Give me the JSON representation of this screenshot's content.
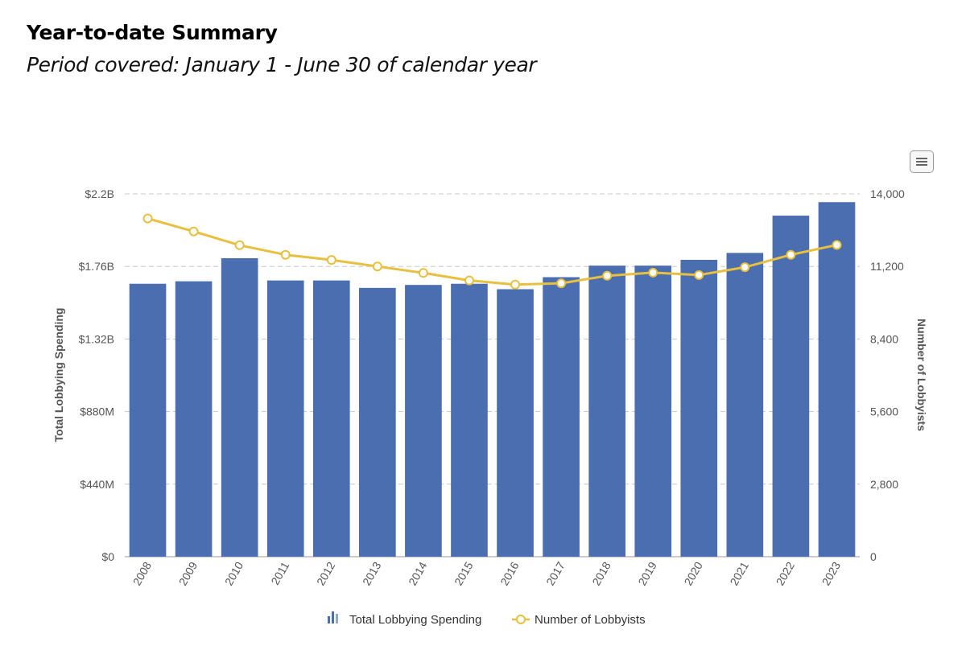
{
  "page": {
    "heading": "Year-to-date Summary",
    "subheading": "Period covered: January 1 - June 30 of calendar year"
  },
  "colors": {
    "bar": "#4a6eb0",
    "line": "#e8c040",
    "grid": "#c8c8c8",
    "axis_text": "#555555",
    "label_text": "#333333"
  },
  "chart_data": {
    "type": "bar",
    "categories": [
      "2008",
      "2009",
      "2010",
      "2011",
      "2012",
      "2013",
      "2014",
      "2015",
      "2016",
      "2017",
      "2018",
      "2019",
      "2020",
      "2021",
      "2022",
      "2023"
    ],
    "series": [
      {
        "name": "Total Lobbying Spending",
        "type": "bar",
        "axis": "left",
        "values": [
          1655000000,
          1670000000,
          1810000000,
          1675000000,
          1675000000,
          1630000000,
          1648000000,
          1655000000,
          1622000000,
          1695000000,
          1765000000,
          1765000000,
          1800000000,
          1842000000,
          2068000000,
          2150000000
        ]
      },
      {
        "name": "Number of Lobbyists",
        "type": "line",
        "axis": "right",
        "values": [
          13050,
          12550,
          12020,
          11650,
          11450,
          11200,
          10950,
          10660,
          10500,
          10550,
          10840,
          10960,
          10870,
          11170,
          11650,
          12030
        ]
      }
    ],
    "title": "",
    "xlabel": "",
    "ylabel": "Total Lobbying Spending",
    "y2label": "Number of Lobbyists",
    "ylim": [
      0,
      2200000000
    ],
    "y2lim": [
      0,
      14000
    ],
    "yticks": [
      "$0",
      "$440M",
      "$880M",
      "$1.32B",
      "$1.76B",
      "$2.2B"
    ],
    "y2ticks": [
      "0",
      "2,800",
      "5,600",
      "8,400",
      "11,200",
      "14,000"
    ],
    "grid": true,
    "legend": "bottom-center",
    "legend_items": [
      "Total Lobbying Spending",
      "Number of Lobbyists"
    ]
  }
}
